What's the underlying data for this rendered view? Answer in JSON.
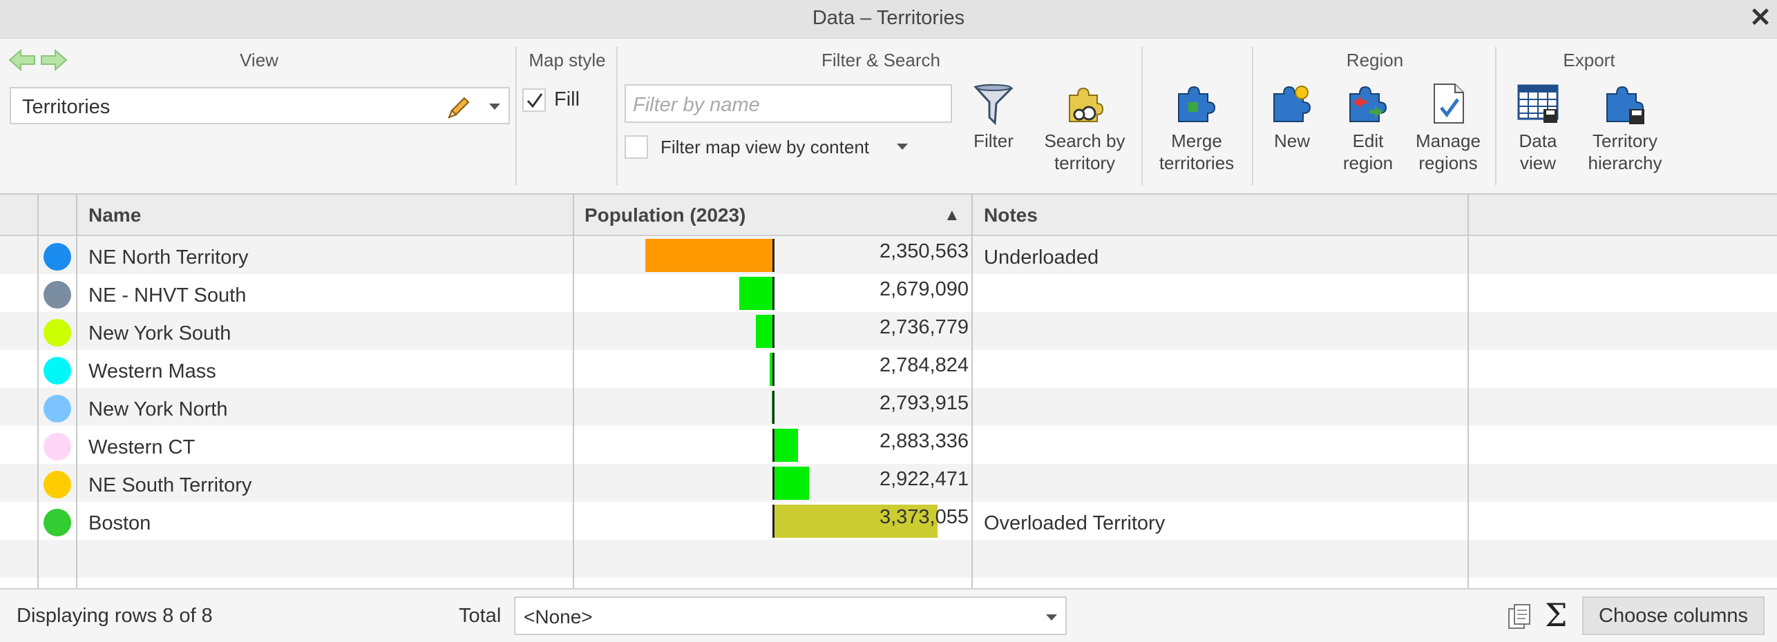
{
  "window": {
    "title": "Data – Territories"
  },
  "ribbon": {
    "view": {
      "group_title": "View",
      "selected": "Territories"
    },
    "map_style": {
      "group_title": "Map style",
      "fill_label": "Fill",
      "fill_checked": true
    },
    "filter_search": {
      "group_title": "Filter & Search",
      "filter_placeholder": "Filter by name",
      "content_label": "Filter map view by content",
      "filter_button": "Filter",
      "search_line1": "Search by",
      "search_line2": "territory"
    },
    "merge": {
      "line1": "Merge",
      "line2": "territories"
    },
    "region": {
      "group_title": "Region",
      "new_label": "New",
      "edit_line1": "Edit",
      "edit_line2": "region",
      "manage_line1": "Manage",
      "manage_line2": "regions"
    },
    "export": {
      "group_title": "Export",
      "data_line1": "Data",
      "data_line2": "view",
      "hier_line1": "Territory",
      "hier_line2": "hierarchy"
    }
  },
  "table": {
    "columns": {
      "name": "Name",
      "population": "Population (2023)",
      "sort_indicator": "▲",
      "notes": "Notes"
    },
    "rows": [
      {
        "color": "#1a8cf0",
        "name": "NE North Territory",
        "population": "2,350,563",
        "population_value": 2350563,
        "notes": "Underloaded",
        "bar_color": "#ff9900"
      },
      {
        "color": "#7b8da0",
        "name": "NE - NHVT South",
        "population": "2,679,090",
        "population_value": 2679090,
        "notes": "",
        "bar_color": "#00ee00"
      },
      {
        "color": "#ccff00",
        "name": "New York South",
        "population": "2,736,779",
        "population_value": 2736779,
        "notes": "",
        "bar_color": "#00ee00"
      },
      {
        "color": "#00f7f7",
        "name": "Western Mass",
        "population": "2,784,824",
        "population_value": 2784824,
        "notes": "",
        "bar_color": "#00ee00"
      },
      {
        "color": "#7cc4ff",
        "name": "New York North",
        "population": "2,793,915",
        "population_value": 2793915,
        "notes": "",
        "bar_color": "#00ee00"
      },
      {
        "color": "#ffd6f7",
        "name": "Western CT",
        "population": "2,883,336",
        "population_value": 2883336,
        "notes": "",
        "bar_color": "#00ee00"
      },
      {
        "color": "#ffcc00",
        "name": "NE South Territory",
        "population": "2,922,471",
        "population_value": 2922471,
        "notes": "",
        "bar_color": "#00ee00"
      },
      {
        "color": "#33cc33",
        "name": "Boston",
        "population": "3,373,055",
        "population_value": 3373055,
        "notes": "Overloaded Territory",
        "bar_color": "#cccc33"
      }
    ]
  },
  "footer": {
    "display_text": "Displaying rows 8 of 8",
    "total_label": "Total",
    "total_value": "<None>",
    "choose_columns": "Choose columns"
  }
}
